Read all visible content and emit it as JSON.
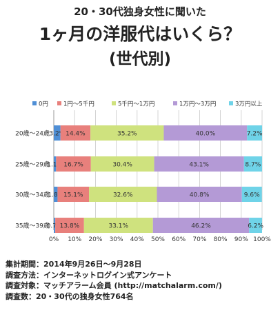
{
  "header": {
    "supertitle": "20・30代独身女性に聞いた",
    "title": "1ヶ月の洋服代はいくら？",
    "subtitle": "(世代別)"
  },
  "chart_data": {
    "type": "bar",
    "orientation": "horizontal",
    "stacked": true,
    "percent": true,
    "categories": [
      "20歳〜24歳",
      "25歳〜29歳",
      "30歳〜34歳",
      "35歳〜39歳"
    ],
    "series": [
      {
        "name": "0円",
        "color": "#4f8fd6",
        "values": [
          3.2,
          1.1,
          1.8,
          0.7
        ],
        "labels": [
          "3.2%",
          "1.1%",
          "1.8%",
          "0.7%"
        ]
      },
      {
        "name": "1円〜5千円",
        "color": "#e8807c",
        "values": [
          14.4,
          16.7,
          15.1,
          13.8
        ],
        "labels": [
          "14.4%",
          "16.7%",
          "15.1%",
          "13.8%"
        ]
      },
      {
        "name": "5千円〜1万円",
        "color": "#cfe27e",
        "values": [
          35.2,
          30.4,
          32.6,
          33.1
        ],
        "labels": [
          "35.2%",
          "30.4%",
          "32.6%",
          "33.1%"
        ]
      },
      {
        "name": "1万円〜3万円",
        "color": "#b49ad6",
        "values": [
          40.0,
          43.1,
          40.8,
          46.2
        ],
        "labels": [
          "40.0%",
          "43.1%",
          "40.8%",
          "46.2%"
        ]
      },
      {
        "name": "3万円以上",
        "color": "#6fd3e8",
        "values": [
          7.2,
          8.7,
          9.6,
          6.2
        ],
        "labels": [
          "7.2%",
          "8.7%",
          "9.6%",
          "6.2%"
        ]
      }
    ],
    "xticks": [
      "0%",
      "10%",
      "20%",
      "30%",
      "40%",
      "50%",
      "60%",
      "70%",
      "80%",
      "90%",
      "100%"
    ],
    "xlim": [
      0,
      100
    ],
    "grid": true,
    "legend": "top"
  },
  "notes": [
    "集計期間：2014年9月26日〜9月28日",
    "調査方法：インターネットログイン式アンケート",
    "調査対象：マッチアラーム会員 (http://matchalarm.com/)",
    "調査数：20・30代の独身女性764名"
  ]
}
